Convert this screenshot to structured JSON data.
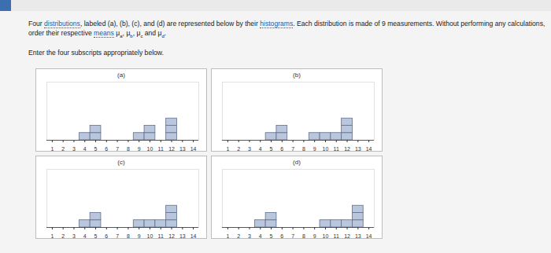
{
  "header": {
    "question": [
      {
        "text": "Four "
      },
      {
        "text": "distributions",
        "link": true
      },
      {
        "text": ", labeled (a), (b), (c), and (d) are represented below by their "
      },
      {
        "text": "histograms",
        "link": true
      },
      {
        "text": ". Each distribution is made of 9 measurements. Without performing any calculations, order their respective "
      },
      {
        "text": "means",
        "link": true
      },
      {
        "text": " "
      },
      {
        "text": "μ",
        "sub": "a"
      },
      {
        "text": ", "
      },
      {
        "text": "μ",
        "sub": "b"
      },
      {
        "text": ", "
      },
      {
        "text": "μ",
        "sub": "c"
      },
      {
        "text": " and "
      },
      {
        "text": "μ",
        "sub": "d"
      },
      {
        "text": "."
      }
    ],
    "instruction": "Enter the four subscripts appropriately below."
  },
  "chart_data": [
    {
      "type": "histogram",
      "title": "(a)",
      "bins": [
        0.5,
        1.5,
        2.5,
        3.5,
        4.5,
        5.5,
        6.5,
        7.5,
        8.5,
        9.5,
        10.5,
        11.5,
        12.5,
        13.5,
        14.5
      ],
      "counts": [
        0,
        0,
        0,
        1,
        2,
        0,
        0,
        0,
        1,
        2,
        0,
        3,
        0,
        0
      ],
      "xlim": [
        0.5,
        14.5
      ],
      "xticks": [
        1,
        2,
        3,
        4,
        5,
        6,
        7,
        8,
        9,
        10,
        11,
        12,
        13,
        14
      ],
      "ylim": [
        0,
        8
      ],
      "tick_labels": "x",
      "color": "#b9c6dc"
    },
    {
      "type": "histogram",
      "title": "(b)",
      "bins": [
        0.5,
        1.5,
        2.5,
        3.5,
        4.5,
        5.5,
        6.5,
        7.5,
        8.5,
        9.5,
        10.5,
        11.5,
        12.5,
        13.5,
        14.5
      ],
      "counts": [
        0,
        0,
        0,
        0,
        1,
        2,
        0,
        0,
        1,
        1,
        1,
        3,
        0,
        0
      ],
      "xlim": [
        0.5,
        14.5
      ],
      "xticks": [
        1,
        2,
        3,
        4,
        5,
        6,
        7,
        8,
        9,
        10,
        11,
        12,
        13,
        14
      ],
      "ylim": [
        0,
        8
      ],
      "tick_labels": "x",
      "color": "#b9c6dc"
    },
    {
      "type": "histogram",
      "title": "(c)",
      "bins": [
        0.5,
        1.5,
        2.5,
        3.5,
        4.5,
        5.5,
        6.5,
        7.5,
        8.5,
        9.5,
        10.5,
        11.5,
        12.5,
        13.5,
        14.5
      ],
      "counts": [
        0,
        0,
        0,
        1,
        2,
        0,
        0,
        0,
        1,
        1,
        1,
        3,
        0,
        0
      ],
      "xlim": [
        0.5,
        14.5
      ],
      "xticks": [
        1,
        2,
        3,
        4,
        5,
        6,
        7,
        8,
        9,
        10,
        11,
        12,
        13,
        14
      ],
      "ylim": [
        0,
        8
      ],
      "tick_labels": "x",
      "color": "#b9c6dc"
    },
    {
      "type": "histogram",
      "title": "(d)",
      "bins": [
        0.5,
        1.5,
        2.5,
        3.5,
        4.5,
        5.5,
        6.5,
        7.5,
        8.5,
        9.5,
        10.5,
        11.5,
        12.5,
        13.5,
        14.5
      ],
      "counts": [
        0,
        0,
        0,
        1,
        2,
        0,
        0,
        0,
        0,
        1,
        1,
        1,
        3,
        0
      ],
      "xlim": [
        0.5,
        14.5
      ],
      "xticks": [
        1,
        2,
        3,
        4,
        5,
        6,
        7,
        8,
        9,
        10,
        11,
        12,
        13,
        14
      ],
      "ylim": [
        0,
        8
      ],
      "tick_labels": "x",
      "color": "#b9c6dc"
    }
  ]
}
